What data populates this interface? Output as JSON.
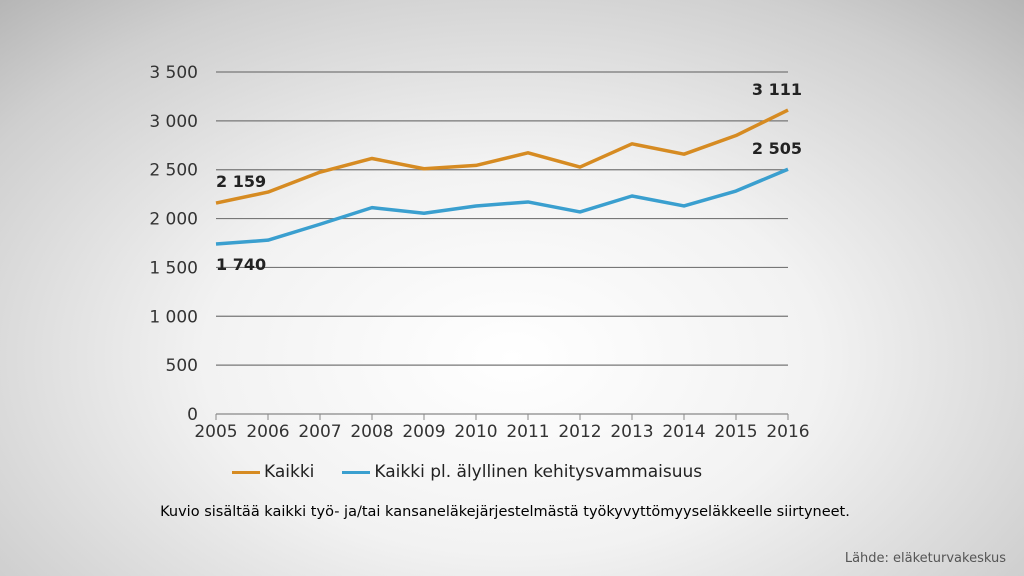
{
  "chart_data": {
    "type": "line",
    "x": [
      2005,
      2006,
      2007,
      2008,
      2009,
      2010,
      2011,
      2012,
      2013,
      2014,
      2015,
      2016
    ],
    "series": [
      {
        "name": "Kaikki",
        "color": "#d68b22",
        "values": [
          2159,
          2271,
          2475,
          2615,
          2510,
          2544,
          2673,
          2527,
          2765,
          2659,
          2850,
          3111
        ]
      },
      {
        "name": "Kaikki pl. älyllinen kehitysvammaisuus",
        "color": "#3a9fcf",
        "values": [
          1740,
          1779,
          1942,
          2112,
          2054,
          2129,
          2170,
          2068,
          2231,
          2129,
          2282,
          2505
        ]
      }
    ],
    "ylim": [
      0,
      3500
    ],
    "yticks": [
      0,
      500,
      1000,
      1500,
      2000,
      2500,
      3000,
      3500
    ],
    "ytick_labels": [
      "0",
      "500",
      "1 000",
      "1 500",
      "2 000",
      "2 500",
      "3 000",
      "3 500"
    ],
    "data_labels": [
      {
        "series": 0,
        "index": 0,
        "text": "2 159"
      },
      {
        "series": 0,
        "index": 11,
        "text": "3 111"
      },
      {
        "series": 1,
        "index": 0,
        "text": "1 740"
      },
      {
        "series": 1,
        "index": 11,
        "text": "2 505"
      }
    ],
    "grid": true,
    "legend": "bottom"
  },
  "note": "Kuvio sisältää kaikki työ- ja/tai kansaneläkejärjestelmästä työkyvyttömyyseläkkeelle siirtyneet.",
  "source": "Lähde: eläketurvakeskus"
}
